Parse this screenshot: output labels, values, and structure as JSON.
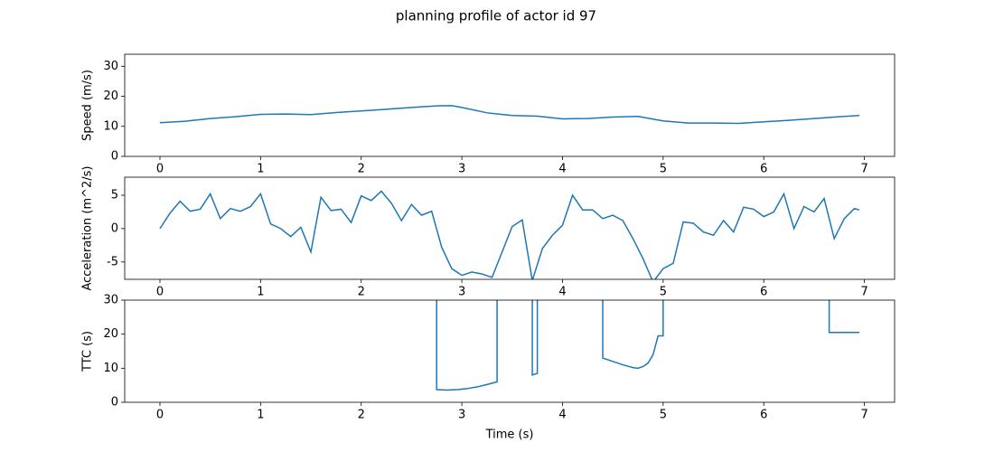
{
  "title": "planning profile of actor id 97",
  "chart_data": [
    {
      "type": "line",
      "ylabel": "Speed (m/s)",
      "color": "#1f77b4",
      "x": [
        0,
        0.25,
        0.5,
        0.75,
        1,
        1.25,
        1.5,
        1.75,
        2,
        2.25,
        2.5,
        2.75,
        2.9,
        3,
        3.25,
        3.5,
        3.75,
        4,
        4.25,
        4.5,
        4.75,
        5,
        5.25,
        5.5,
        5.75,
        6,
        6.25,
        6.5,
        6.75,
        6.95
      ],
      "values": [
        11.2,
        11.7,
        12.6,
        13.2,
        14.0,
        14.1,
        13.9,
        14.6,
        15.1,
        15.7,
        16.3,
        16.8,
        16.9,
        16.3,
        14.5,
        13.6,
        13.4,
        12.5,
        12.6,
        13.1,
        13.3,
        11.8,
        11.1,
        11.1,
        11.0,
        11.5,
        12.0,
        12.6,
        13.2,
        13.6
      ],
      "xlim": [
        -0.35,
        7.3
      ],
      "xticks": [
        0,
        1,
        2,
        3,
        4,
        5,
        6,
        7
      ],
      "ylim": [
        0,
        34
      ],
      "yticks": [
        0,
        10,
        20,
        30
      ]
    },
    {
      "type": "line",
      "ylabel": "Acceleration (m^2/s)",
      "color": "#1f77b4",
      "x": [
        0,
        0.1,
        0.2,
        0.3,
        0.4,
        0.5,
        0.6,
        0.7,
        0.8,
        0.9,
        1.0,
        1.1,
        1.2,
        1.3,
        1.4,
        1.5,
        1.6,
        1.7,
        1.8,
        1.9,
        2.0,
        2.1,
        2.2,
        2.3,
        2.4,
        2.5,
        2.6,
        2.7,
        2.8,
        2.9,
        3.0,
        3.1,
        3.2,
        3.3,
        3.4,
        3.5,
        3.6,
        3.7,
        3.8,
        3.9,
        4.0,
        4.1,
        4.2,
        4.3,
        4.4,
        4.5,
        4.6,
        4.7,
        4.8,
        4.9,
        5.0,
        5.1,
        5.2,
        5.3,
        5.4,
        5.5,
        5.6,
        5.7,
        5.8,
        5.9,
        6.0,
        6.1,
        6.2,
        6.3,
        6.4,
        6.5,
        6.6,
        6.7,
        6.8,
        6.9,
        6.95
      ],
      "values": [
        0,
        2.3,
        4.1,
        2.6,
        2.9,
        5.2,
        1.5,
        3.0,
        2.6,
        3.3,
        5.2,
        0.7,
        0.0,
        -1.2,
        0.2,
        -3.5,
        4.7,
        2.7,
        2.9,
        0.9,
        4.9,
        4.2,
        5.6,
        3.8,
        1.2,
        3.6,
        2.0,
        2.6,
        -2.8,
        -6.0,
        -7.0,
        -6.5,
        -6.8,
        -7.3,
        -3.5,
        0.3,
        1.3,
        -7.8,
        -3.0,
        -1.0,
        0.5,
        5.0,
        2.8,
        2.8,
        1.5,
        2.0,
        1.2,
        -1.5,
        -4.5,
        -8.0,
        -6.0,
        -5.2,
        1.0,
        0.8,
        -0.5,
        -1.0,
        1.2,
        -0.5,
        3.2,
        2.9,
        1.8,
        2.5,
        5.2,
        0.0,
        3.3,
        2.5,
        4.5,
        -1.5,
        1.5,
        3.0,
        2.8
      ],
      "xlim": [
        -0.35,
        7.3
      ],
      "xticks": [
        0,
        1,
        2,
        3,
        4,
        5,
        6,
        7
      ],
      "ylim": [
        -7.6,
        7.7
      ],
      "yticks": [
        -5,
        0,
        5
      ]
    },
    {
      "type": "line",
      "ylabel": "TTC (s)",
      "xlabel": "Time (s)",
      "color": "#1f77b4",
      "x": [
        2.75,
        2.75,
        2.85,
        2.95,
        3.05,
        3.15,
        3.25,
        3.35,
        3.35,
        3.7,
        3.7,
        3.75,
        3.75,
        4.4,
        4.4,
        4.5,
        4.6,
        4.7,
        4.75,
        4.8,
        4.85,
        4.9,
        4.95,
        5.0,
        5.0,
        6.65,
        6.65,
        6.95
      ],
      "values": [
        60,
        3.7,
        3.6,
        3.7,
        4.0,
        4.5,
        5.2,
        6.0,
        60,
        60,
        8.0,
        8.5,
        60,
        60,
        13.0,
        12.0,
        11.0,
        10.2,
        10.0,
        10.5,
        11.5,
        14.0,
        19.5,
        19.5,
        60,
        60,
        20.5,
        20.5
      ],
      "xlim": [
        -0.35,
        7.3
      ],
      "xticks": [
        0,
        1,
        2,
        3,
        4,
        5,
        6,
        7
      ],
      "ylim": [
        0,
        30
      ],
      "yticks": [
        0,
        10,
        20,
        30
      ]
    }
  ]
}
